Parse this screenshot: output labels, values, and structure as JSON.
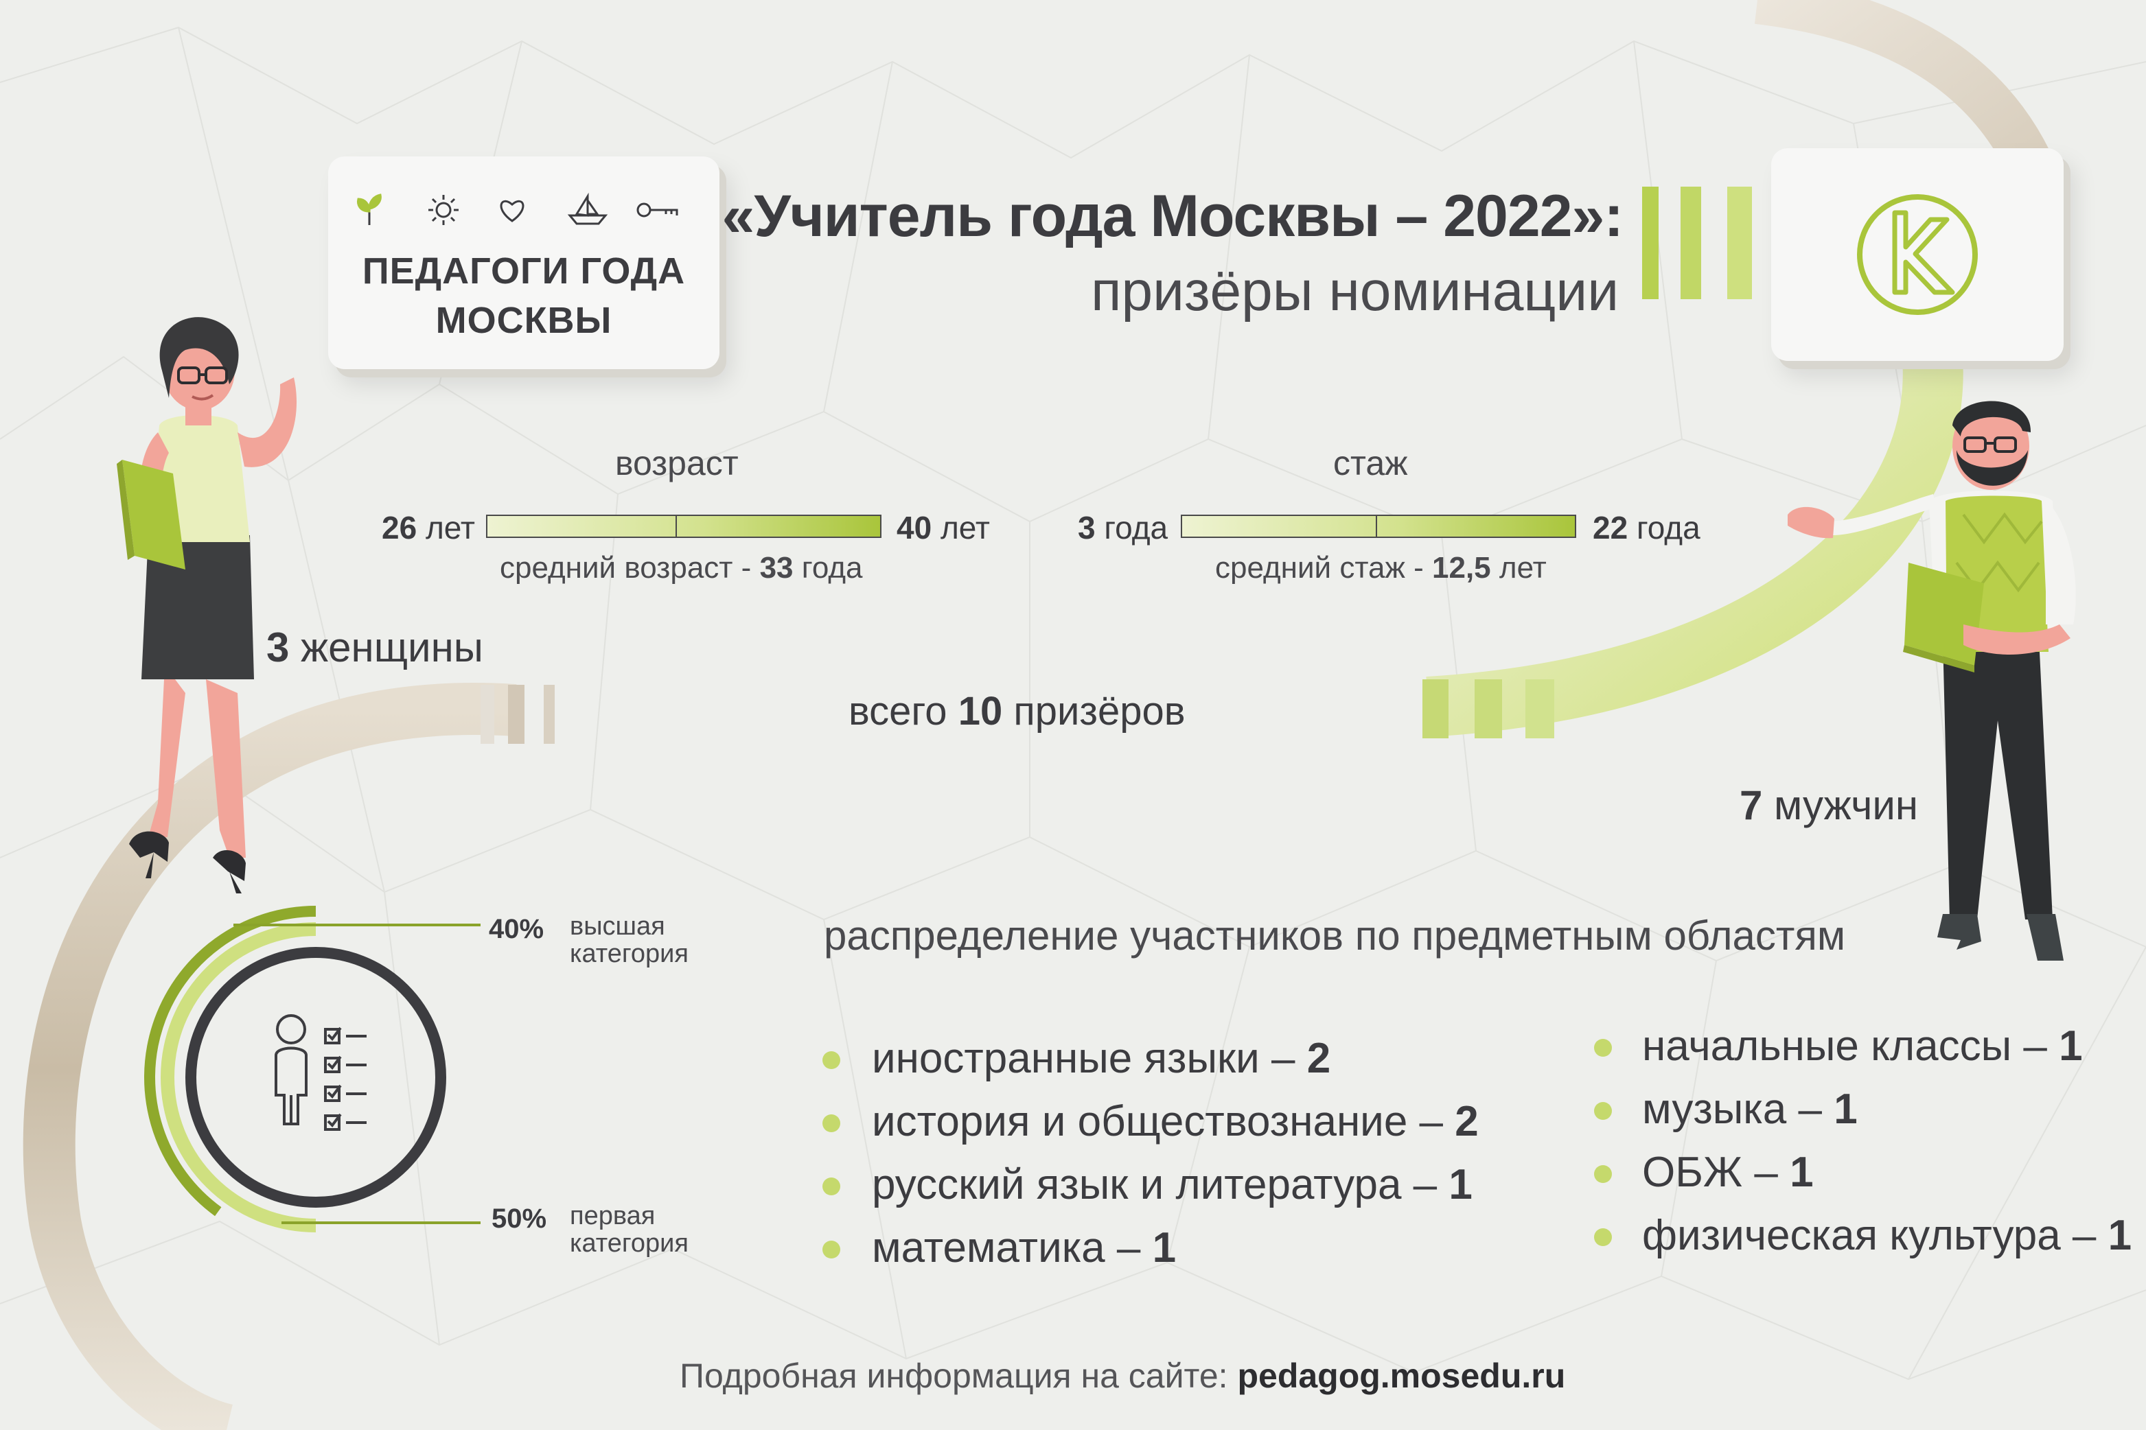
{
  "logo_card": {
    "title_line1": "ПЕДАГОГИ ГОДА",
    "title_line2": "МОСКВЫ",
    "icons": [
      "sprout-icon",
      "sun-icon",
      "heart-icon",
      "boat-icon",
      "key-icon"
    ]
  },
  "header": {
    "title": "«Учитель года Москвы – 2022»:",
    "subtitle": "призёры номинации"
  },
  "brand_logo_icon": "k-monogram-icon",
  "age": {
    "label": "возраст",
    "min": "26",
    "min_unit": "лет",
    "max": "40",
    "max_unit": "лет",
    "avg_prefix": "средний возраст -",
    "avg_value": "33",
    "avg_unit": "года",
    "range": [
      26,
      40
    ],
    "average": 33
  },
  "experience": {
    "label": "стаж",
    "min": "3",
    "min_unit": "года",
    "max": "22",
    "max_unit": "года",
    "avg_prefix": "средний стаж -",
    "avg_value": "12,5",
    "avg_unit": "лет",
    "range": [
      3,
      22
    ],
    "average": 12.5
  },
  "women": {
    "count": "3",
    "label": "женщины"
  },
  "men": {
    "count": "7",
    "label": "мужчин"
  },
  "total": {
    "prefix": "всего",
    "count": "10",
    "suffix": "призёров"
  },
  "categories": {
    "icon": "teacher-checklist-icon",
    "highest": {
      "percent": "40%",
      "line1": "высшая",
      "line2": "категория",
      "value": 40
    },
    "first": {
      "percent": "50%",
      "line1": "первая",
      "line2": "категория",
      "value": 50
    }
  },
  "subjects": {
    "heading": "распределение участников по предметным областям",
    "left": [
      {
        "name": "иностранные языки –",
        "count": "2"
      },
      {
        "name": "история и обществознание –",
        "count": "2"
      },
      {
        "name": "русский язык и литература –",
        "count": "1"
      },
      {
        "name": "математика –",
        "count": "1"
      }
    ],
    "right": [
      {
        "name": "начальные классы –",
        "count": "1"
      },
      {
        "name": "музыка –",
        "count": "1"
      },
      {
        "name": "ОБЖ –",
        "count": "1"
      },
      {
        "name": "физическая культура –",
        "count": "1"
      }
    ]
  },
  "footer": {
    "prefix": "Подробная информация на сайте:",
    "url": "pedagog.mosedu.ru"
  },
  "colors": {
    "accent_green": "#a9c53b",
    "light_green": "#d6e48c",
    "beige": "#cfc3b0",
    "dark": "#3c3c40",
    "background": "#eeefec"
  }
}
